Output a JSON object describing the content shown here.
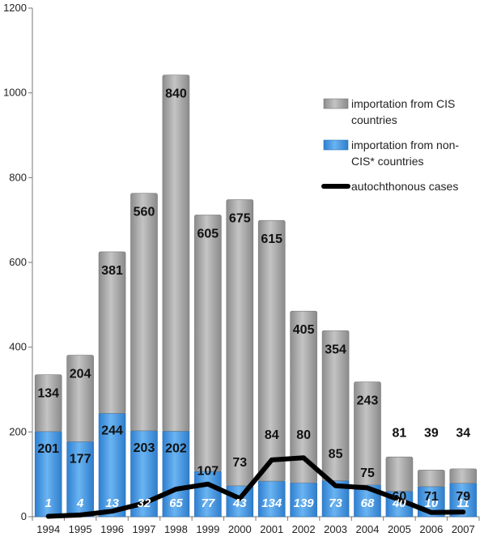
{
  "chart_data": {
    "type": "bar",
    "categories": [
      "1994",
      "1995",
      "1996",
      "1997",
      "1998",
      "1999",
      "2000",
      "2001",
      "2002",
      "2003",
      "2004",
      "2005",
      "2006",
      "2007"
    ],
    "series": [
      {
        "name": "importation from CIS countries",
        "values": [
          134,
          204,
          381,
          560,
          840,
          605,
          675,
          615,
          405,
          354,
          243,
          81,
          39,
          34
        ],
        "color": "#a3a3a3"
      },
      {
        "name": "importation from non-CIS* countries",
        "values": [
          201,
          177,
          244,
          203,
          202,
          107,
          73,
          84,
          80,
          85,
          75,
          60,
          71,
          79
        ],
        "color": "#4d9de4"
      },
      {
        "name": "autochthonous cases",
        "values": [
          1,
          4,
          13,
          32,
          65,
          77,
          43,
          134,
          139,
          73,
          68,
          40,
          10,
          11
        ],
        "color": "#000000"
      }
    ],
    "ylim": [
      0,
      1200
    ],
    "yticks": [
      "0",
      "200",
      "400",
      "600",
      "800",
      "1000",
      "1200"
    ],
    "legend": {
      "placement": "top-right",
      "items": [
        {
          "lines": [
            "importation from CIS",
            "countries"
          ],
          "swatch": "bar-gray"
        },
        {
          "lines": [
            "importation from non-",
            "CIS* countries"
          ],
          "swatch": "bar-blue"
        },
        {
          "lines": [
            "autochthonous cases"
          ],
          "swatch": "line-black"
        }
      ]
    },
    "grid": false
  }
}
